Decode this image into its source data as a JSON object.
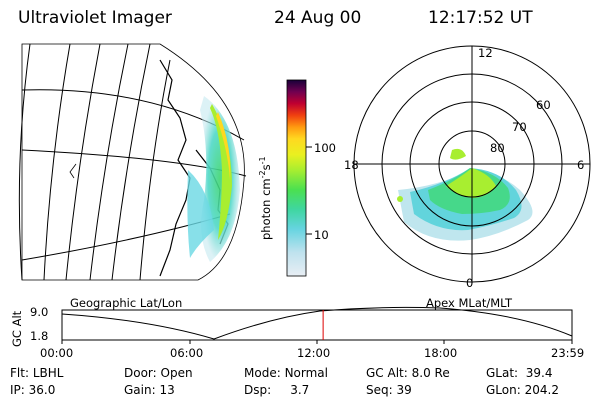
{
  "header": {
    "title": "Ultraviolet Imager",
    "date": "24 Aug 00",
    "time": "12:17:52 UT"
  },
  "colorbar": {
    "unit_label": "photon cm",
    "unit_sup1": "-2",
    "unit_s": "s",
    "unit_sup2": "-1",
    "tick_high": "100",
    "tick_low": "10"
  },
  "polar": {
    "mlt_top": "12",
    "mlt_left": "18",
    "mlt_right": "6",
    "mlt_bottom": "0",
    "lat_labels": [
      "60",
      "70",
      "80"
    ]
  },
  "panels": {
    "left_label": "Geographic Lat/Lon",
    "right_label": "Apex MLat/MLT"
  },
  "timeline": {
    "ylabel": "GC Alt",
    "y_high": "9.0",
    "y_low": "1.8",
    "x_ticks": [
      "00:00",
      "06:00",
      "12:00",
      "18:00",
      "23:59"
    ],
    "current_time_fraction": 0.512,
    "line_color": "#dd0000"
  },
  "status": {
    "row1": [
      {
        "label": "Flt:",
        "value": "LBHL"
      },
      {
        "label": "Door:",
        "value": "Open"
      },
      {
        "label": "Mode:",
        "value": "Normal"
      },
      {
        "label": "GC Alt:",
        "value": "8.0 Re"
      },
      {
        "label": "GLat:",
        "value": "39.4"
      }
    ],
    "row2": [
      {
        "label": "IP:",
        "value": "36.0"
      },
      {
        "label": "Gain:",
        "value": "13"
      },
      {
        "label": "Dsp:",
        "value": "3.7"
      },
      {
        "label": "Seq:",
        "value": "39"
      },
      {
        "label": "GLon:",
        "value": "204.2"
      }
    ]
  }
}
